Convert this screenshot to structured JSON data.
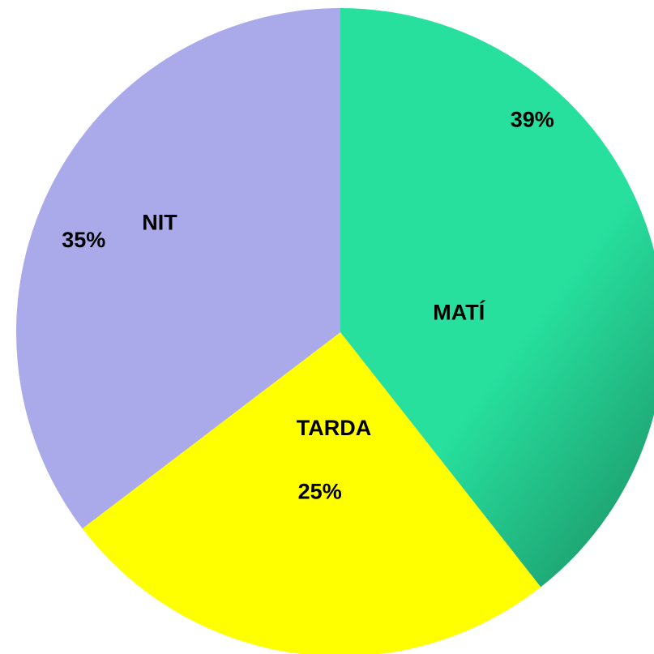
{
  "chart_data": {
    "type": "pie",
    "categories": [
      "MATÍ",
      "TARDA",
      "NIT"
    ],
    "values": [
      39,
      25,
      35
    ],
    "value_labels": [
      "39%",
      "25%",
      "35%"
    ],
    "colors": [
      "#27e09e",
      "#ffff00",
      "#aaaaea"
    ]
  }
}
